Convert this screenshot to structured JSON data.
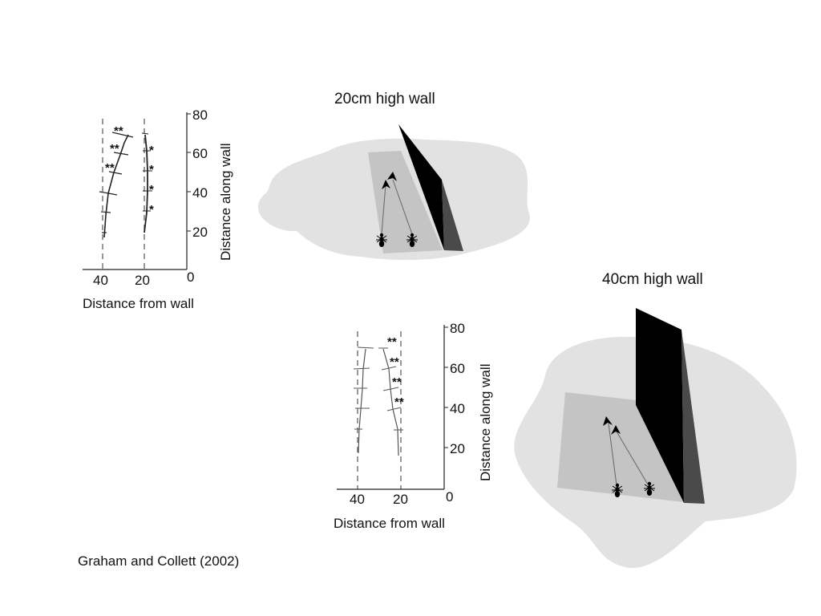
{
  "panels": {
    "wall20": {
      "title": "20cm high wall",
      "y_axis_label": "Distance along wall",
      "x_axis_label": "Distance from wall",
      "y_ticks": [
        "80",
        "60",
        "40",
        "20",
        "0"
      ],
      "x_ticks": [
        "40",
        "20"
      ],
      "left_track_marks": [
        "**",
        "**",
        "**"
      ],
      "right_track_marks": [
        "*",
        "*",
        "*",
        "*"
      ]
    },
    "wall40": {
      "title": "40cm high wall",
      "y_axis_label": "Distance along wall",
      "x_axis_label": "Distance from wall",
      "y_ticks": [
        "80",
        "60",
        "40",
        "20",
        "0"
      ],
      "x_ticks": [
        "40",
        "20"
      ],
      "right_track_marks": [
        "**",
        "**",
        "**",
        "**"
      ]
    }
  },
  "citation": "Graham and Collett (2002)",
  "colors": {
    "arena": "#e2e2e2",
    "platform": "#c4c4c4",
    "wall_face": "#000000",
    "wall_side": "#4a4a4a",
    "ink": "#111111"
  }
}
